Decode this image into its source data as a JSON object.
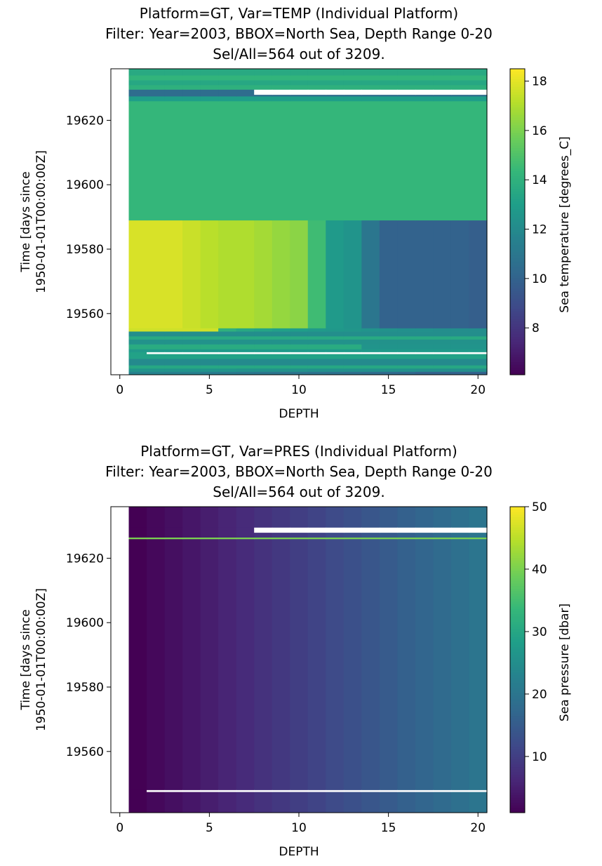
{
  "chart_data": [
    {
      "type": "heatmap",
      "title": [
        "Platform=GT, Var=TEMP (Individual Platform)",
        "Filter: Year=2003, BBOX=North Sea, Depth Range 0-20",
        "Sel/All=564 out of 3209."
      ],
      "xlabel": "DEPTH",
      "ylabel": [
        "Time [days since",
        "1950-01-01T00:00:00Z]"
      ],
      "xlim": [
        -0.5,
        20.5
      ],
      "ylim": [
        19541,
        19636
      ],
      "xticks": [
        0,
        5,
        10,
        15,
        20
      ],
      "yticks": [
        19560,
        19580,
        19600,
        19620
      ],
      "colorbar": {
        "label": "Sea temperature [degrees_C]",
        "range": [
          6.1,
          18.5
        ],
        "ticks": [
          8,
          10,
          12,
          14,
          16,
          18
        ],
        "colormap": "viridis"
      },
      "bands": [
        {
          "t0": 19541.0,
          "t1": 19542.0,
          "kind": "temp",
          "levels": [
            11.6,
            11.6,
            11.5,
            11.5,
            11.3,
            11.2,
            11.1,
            11.0,
            10.9,
            10.9,
            10.8,
            10.7,
            10.6,
            10.5,
            10.4,
            10.3,
            10.0,
            10.0,
            10.0,
            10.0
          ]
        },
        {
          "t0": 19542.0,
          "t1": 19543.0,
          "kind": "temp",
          "levels": [
            12.5,
            12.5,
            12.5,
            12.5,
            12.5,
            12.5,
            12.4,
            12.4,
            12.4,
            12.4,
            12.3,
            12.3,
            12.3,
            12.3,
            12.3,
            12.3,
            12.2,
            12.2,
            12.2,
            12.2
          ]
        },
        {
          "t0": 19543.0,
          "t1": 19544.0,
          "kind": "temp",
          "levels": [
            13.5,
            13.5,
            13.5,
            13.5,
            13.5,
            13.5,
            13.5,
            13.5,
            13.5,
            13.5,
            13.5,
            13.5,
            13.5,
            13.5,
            13.5,
            13.5,
            13.5,
            13.5,
            13.5,
            13.5
          ]
        },
        {
          "t0": 19544.0,
          "t1": 19546.0,
          "kind": "temp",
          "levels": [
            12.0,
            12.0,
            12.0,
            12.0,
            12.0,
            12.0,
            12.0,
            12.0,
            12.0,
            12.0,
            12.0,
            12.0,
            12.0,
            12.0,
            12.0,
            12.0,
            12.0,
            12.0,
            12.0,
            12.0
          ]
        },
        {
          "t0": 19546.0,
          "t1": 19547.5,
          "kind": "temp",
          "levels": [
            13.2,
            13.2,
            13.2,
            13.2,
            13.2,
            13.2,
            13.2,
            13.2,
            13.2,
            13.2,
            13.2,
            13.2,
            13.2,
            13.2,
            13.2,
            13.2,
            13.2,
            13.2,
            13.2,
            13.2
          ]
        },
        {
          "t0": 19547.5,
          "t1": 19548.0,
          "kind": "blank",
          "from": 1.5
        },
        {
          "t0": 19548.0,
          "t1": 19549.0,
          "kind": "temp",
          "levels": [
            12.8,
            12.8,
            12.8,
            12.8,
            12.8,
            12.8,
            12.8,
            12.8,
            12.8,
            12.8,
            12.8,
            12.8,
            12.8,
            12.8,
            12.8,
            12.8,
            12.8,
            12.8,
            12.8,
            12.8
          ]
        },
        {
          "t0": 19549.0,
          "t1": 19550.5,
          "kind": "temp",
          "levels": [
            13.7,
            13.7,
            13.7,
            13.7,
            13.7,
            13.7,
            13.7,
            13.7,
            13.7,
            13.7,
            13.7,
            13.7,
            13.7,
            12.5,
            12.5,
            12.5,
            12.5,
            12.5,
            12.5,
            12.5
          ]
        },
        {
          "t0": 19550.5,
          "t1": 19552.0,
          "kind": "temp",
          "levels": [
            12.4,
            12.4,
            12.4,
            12.4,
            12.4,
            12.4,
            12.4,
            12.4,
            12.4,
            12.4,
            12.4,
            12.4,
            12.4,
            12.4,
            12.4,
            12.4,
            12.4,
            12.4,
            12.4,
            12.4
          ]
        },
        {
          "t0": 19552.0,
          "t1": 19553.0,
          "kind": "temp",
          "levels": [
            13.6,
            13.6,
            13.6,
            13.6,
            13.6,
            13.6,
            13.6,
            13.6,
            13.6,
            13.6,
            13.6,
            13.6,
            13.6,
            13.6,
            13.6,
            13.6,
            13.6,
            13.6,
            13.6,
            13.6
          ]
        },
        {
          "t0": 19553.0,
          "t1": 19554.5,
          "kind": "temp",
          "levels": [
            12.2,
            12.2,
            12.2,
            12.2,
            12.2,
            12.2,
            12.2,
            12.2,
            12.2,
            12.2,
            12.2,
            12.2,
            12.2,
            12.2,
            12.2,
            12.2,
            12.2,
            12.2,
            12.2,
            12.2
          ]
        },
        {
          "t0": 19554.5,
          "t1": 19555.5,
          "kind": "temp",
          "levels": [
            17.6,
            17.6,
            17.6,
            17.6,
            17.6,
            14.0,
            13.5,
            13.3,
            13.1,
            13.0,
            12.8,
            12.7,
            12.6,
            12.5,
            12.4,
            12.3,
            12.3,
            12.2,
            12.2,
            12.2
          ]
        },
        {
          "t0": 19555.5,
          "t1": 19589.0,
          "kind": "temp",
          "levels": [
            17.8,
            17.8,
            17.8,
            17.5,
            17.2,
            17.0,
            17.0,
            16.8,
            16.5,
            16.3,
            14.6,
            12.8,
            12.5,
            11.0,
            10.0,
            10.0,
            10.0,
            10.0,
            10.0,
            9.8
          ]
        },
        {
          "t0": 19589.0,
          "t1": 19626.0,
          "kind": "temp",
          "levels": [
            14.3,
            14.3,
            14.3,
            14.3,
            14.3,
            14.3,
            14.3,
            14.3,
            14.3,
            14.3,
            14.3,
            14.3,
            14.3,
            14.3,
            14.3,
            14.3,
            14.3,
            14.3,
            14.3,
            14.3
          ]
        },
        {
          "t0": 19626.0,
          "t1": 19627.5,
          "kind": "temp",
          "levels": [
            13.0,
            13.0,
            13.0,
            13.0,
            13.0,
            13.0,
            13.0,
            13.0,
            13.0,
            13.0,
            13.0,
            13.0,
            13.0,
            13.0,
            13.0,
            13.0,
            13.0,
            13.0,
            13.0,
            13.0
          ]
        },
        {
          "t0": 19627.5,
          "t1": 19628.0,
          "kind": "temp",
          "levels": [
            10.5,
            10.5,
            10.5,
            10.5,
            10.5,
            10.5,
            10.5,
            10.5,
            10.5,
            10.5,
            10.5,
            10.5,
            10.5,
            10.5,
            10.5,
            10.5,
            10.5,
            10.5,
            10.5,
            10.5
          ]
        },
        {
          "t0": 19628.0,
          "t1": 19629.5,
          "kind": "blank",
          "from": 7.5
        },
        {
          "t0": 19629.5,
          "t1": 19631.0,
          "kind": "temp",
          "levels": [
            14.0,
            14.0,
            14.0,
            14.0,
            14.0,
            14.0,
            14.0,
            14.0,
            14.0,
            14.0,
            14.0,
            14.0,
            14.0,
            14.0,
            14.0,
            14.0,
            14.0,
            14.0,
            14.0,
            14.0
          ]
        },
        {
          "t0": 19631.0,
          "t1": 19632.5,
          "kind": "temp",
          "levels": [
            13.5,
            13.5,
            13.5,
            13.5,
            13.5,
            13.5,
            13.5,
            13.5,
            13.5,
            13.5,
            13.5,
            13.5,
            13.5,
            13.5,
            13.5,
            13.5,
            13.5,
            13.5,
            13.5,
            13.5
          ]
        },
        {
          "t0": 19632.5,
          "t1": 19634.0,
          "kind": "temp",
          "levels": [
            14.2,
            14.2,
            14.2,
            14.2,
            14.2,
            14.2,
            14.2,
            14.2,
            14.2,
            14.2,
            14.2,
            14.2,
            14.2,
            14.2,
            14.2,
            14.2,
            14.2,
            14.2,
            14.2,
            14.2
          ]
        },
        {
          "t0": 19634.0,
          "t1": 19636.0,
          "kind": "temp",
          "levels": [
            13.6,
            13.6,
            13.6,
            13.6,
            13.6,
            13.6,
            13.6,
            13.6,
            13.6,
            13.6,
            13.6,
            13.6,
            13.6,
            13.6,
            13.6,
            13.6,
            13.6,
            13.6,
            13.6,
            13.6
          ]
        }
      ]
    },
    {
      "type": "heatmap",
      "title": [
        "Platform=GT, Var=PRES (Individual Platform)",
        "Filter: Year=2003, BBOX=North Sea, Depth Range 0-20",
        "Sel/All=564 out of 3209."
      ],
      "xlabel": "DEPTH",
      "ylabel": [
        "Time [days since",
        "1950-01-01T00:00:00Z]"
      ],
      "xlim": [
        -0.5,
        20.5
      ],
      "ylim": [
        19541,
        19636
      ],
      "xticks": [
        0,
        5,
        10,
        15,
        20
      ],
      "yticks": [
        19560,
        19580,
        19600,
        19620
      ],
      "colorbar": {
        "label": "Sea pressure [dbar]",
        "range": [
          1,
          50
        ],
        "ticks": [
          10,
          20,
          30,
          40,
          50
        ],
        "colormap": "viridis"
      },
      "bands": [
        {
          "t0": 19541.0,
          "t1": 19547.5,
          "kind": "pressure",
          "levels": [
            1,
            2,
            3,
            4,
            5,
            6,
            7,
            8,
            9,
            10,
            11,
            12,
            13,
            14,
            15,
            16,
            17,
            18,
            19,
            20
          ]
        },
        {
          "t0": 19547.5,
          "t1": 19548.0,
          "kind": "blank",
          "from": 1.5
        },
        {
          "t0": 19548.0,
          "t1": 19626.0,
          "kind": "pressure",
          "levels": [
            1,
            2,
            3,
            4,
            5,
            6,
            7,
            8,
            9,
            10,
            11,
            12,
            13,
            14,
            15,
            16,
            17,
            18,
            19,
            20
          ]
        },
        {
          "t0": 19626.0,
          "t1": 19626.5,
          "kind": "pressure",
          "levels": [
            40,
            40,
            40,
            40,
            40,
            40,
            40,
            40,
            40,
            40,
            40,
            40,
            40,
            40,
            40,
            40,
            40,
            40,
            40,
            40
          ]
        },
        {
          "t0": 19626.5,
          "t1": 19628.0,
          "kind": "pressure",
          "levels": [
            1,
            2,
            3,
            4,
            5,
            6,
            7,
            8,
            9,
            10,
            11,
            12,
            13,
            14,
            15,
            16,
            17,
            18,
            19,
            20
          ]
        },
        {
          "t0": 19628.0,
          "t1": 19629.5,
          "kind": "blank",
          "from": 7.5
        },
        {
          "t0": 19629.5,
          "t1": 19636.0,
          "kind": "pressure",
          "levels": [
            1,
            2,
            3,
            4,
            5,
            6,
            7,
            8,
            9,
            10,
            11,
            12,
            13,
            14,
            15,
            16,
            17,
            18,
            19,
            20
          ]
        }
      ]
    }
  ]
}
